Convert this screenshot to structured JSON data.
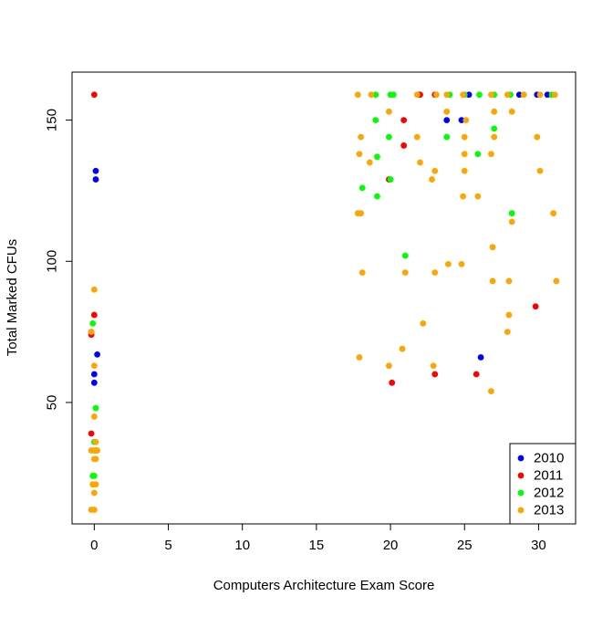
{
  "chart_data": {
    "type": "scatter",
    "xlabel": "Computers Architecture Exam Score",
    "ylabel": "Total Marked CFUs",
    "xlim": [
      -1.5,
      32.5
    ],
    "ylim": [
      7,
      167
    ],
    "x_ticks": [
      0,
      5,
      10,
      15,
      20,
      25,
      30
    ],
    "y_ticks": [
      50,
      100,
      150
    ],
    "legend_position": "bottom-right",
    "series": [
      {
        "name": "2010",
        "color": "#0000ff",
        "points": [
          [
            0.1,
            132
          ],
          [
            0.1,
            129
          ],
          [
            0.2,
            67
          ],
          [
            0.0,
            60
          ],
          [
            0.0,
            57
          ],
          [
            21.9,
            159
          ],
          [
            23.8,
            150
          ],
          [
            24.8,
            150
          ],
          [
            25.3,
            159
          ],
          [
            26.1,
            66
          ],
          [
            28.7,
            159
          ],
          [
            29.9,
            159
          ],
          [
            30.6,
            159
          ]
        ]
      },
      {
        "name": "2011",
        "color": "#ff0000",
        "points": [
          [
            0.0,
            159
          ],
          [
            0.0,
            81
          ],
          [
            -0.2,
            75
          ],
          [
            -0.2,
            74
          ],
          [
            -0.2,
            39
          ],
          [
            22.0,
            159
          ],
          [
            20.9,
            150
          ],
          [
            20.9,
            141
          ],
          [
            19.9,
            129
          ],
          [
            20.1,
            57
          ],
          [
            23.0,
            60
          ],
          [
            25.8,
            60
          ],
          [
            23.0,
            159
          ],
          [
            29.8,
            84
          ]
        ]
      },
      {
        "name": "2012",
        "color": "#00ff00",
        "points": [
          [
            -0.1,
            78
          ],
          [
            0.1,
            48
          ],
          [
            0.0,
            36
          ],
          [
            0.1,
            33
          ],
          [
            -0.1,
            24
          ],
          [
            0.0,
            24
          ],
          [
            19.0,
            159
          ],
          [
            20.0,
            159
          ],
          [
            20.2,
            159
          ],
          [
            24.0,
            159
          ],
          [
            25.0,
            159
          ],
          [
            26.0,
            159
          ],
          [
            27.0,
            159
          ],
          [
            28.1,
            159
          ],
          [
            29.0,
            159
          ],
          [
            30.9,
            159
          ],
          [
            19.0,
            150
          ],
          [
            19.1,
            137
          ],
          [
            19.9,
            144
          ],
          [
            23.8,
            144
          ],
          [
            27.0,
            147
          ],
          [
            25.9,
            138
          ],
          [
            18.1,
            126
          ],
          [
            19.1,
            123
          ],
          [
            28.2,
            117
          ],
          [
            21.0,
            102
          ],
          [
            20.0,
            129
          ]
        ]
      },
      {
        "name": "2013",
        "color": "#ffa500",
        "points": [
          [
            17.8,
            159
          ],
          [
            18.7,
            159
          ],
          [
            21.8,
            159
          ],
          [
            23.1,
            159
          ],
          [
            23.8,
            159
          ],
          [
            24.9,
            159
          ],
          [
            26.8,
            159
          ],
          [
            27.9,
            159
          ],
          [
            29.0,
            159
          ],
          [
            30.1,
            159
          ],
          [
            31.1,
            159
          ],
          [
            19.9,
            153
          ],
          [
            23.8,
            153
          ],
          [
            25.1,
            150
          ],
          [
            27.0,
            153
          ],
          [
            28.2,
            153
          ],
          [
            18.0,
            144
          ],
          [
            21.8,
            144
          ],
          [
            25.0,
            144
          ],
          [
            27.0,
            144
          ],
          [
            29.9,
            144
          ],
          [
            17.9,
            138
          ],
          [
            25.0,
            138
          ],
          [
            26.8,
            138
          ],
          [
            18.6,
            135
          ],
          [
            22.0,
            135
          ],
          [
            23.0,
            132
          ],
          [
            25.0,
            132
          ],
          [
            30.1,
            132
          ],
          [
            22.8,
            129
          ],
          [
            24.9,
            123
          ],
          [
            25.9,
            123
          ],
          [
            17.8,
            117
          ],
          [
            18.0,
            117
          ],
          [
            28.2,
            114
          ],
          [
            31.0,
            117
          ],
          [
            26.9,
            105
          ],
          [
            18.1,
            96
          ],
          [
            21.0,
            96
          ],
          [
            23.0,
            96
          ],
          [
            23.9,
            99
          ],
          [
            24.8,
            99
          ],
          [
            26.9,
            93
          ],
          [
            28.0,
            93
          ],
          [
            31.2,
            93
          ],
          [
            28.0,
            81
          ],
          [
            22.2,
            78
          ],
          [
            27.9,
            75
          ],
          [
            20.8,
            69
          ],
          [
            17.9,
            66
          ],
          [
            19.9,
            63
          ],
          [
            22.9,
            63
          ],
          [
            26.8,
            54
          ],
          [
            0.0,
            90
          ],
          [
            -0.2,
            75
          ],
          [
            0.0,
            63
          ],
          [
            0.0,
            45
          ],
          [
            0.1,
            36
          ],
          [
            -0.2,
            33
          ],
          [
            0.0,
            33
          ],
          [
            0.2,
            33
          ],
          [
            0.0,
            30
          ],
          [
            0.1,
            30
          ],
          [
            -0.1,
            21
          ],
          [
            0.1,
            21
          ],
          [
            0.0,
            18
          ],
          [
            -0.2,
            12
          ],
          [
            0.0,
            12
          ]
        ]
      }
    ]
  }
}
